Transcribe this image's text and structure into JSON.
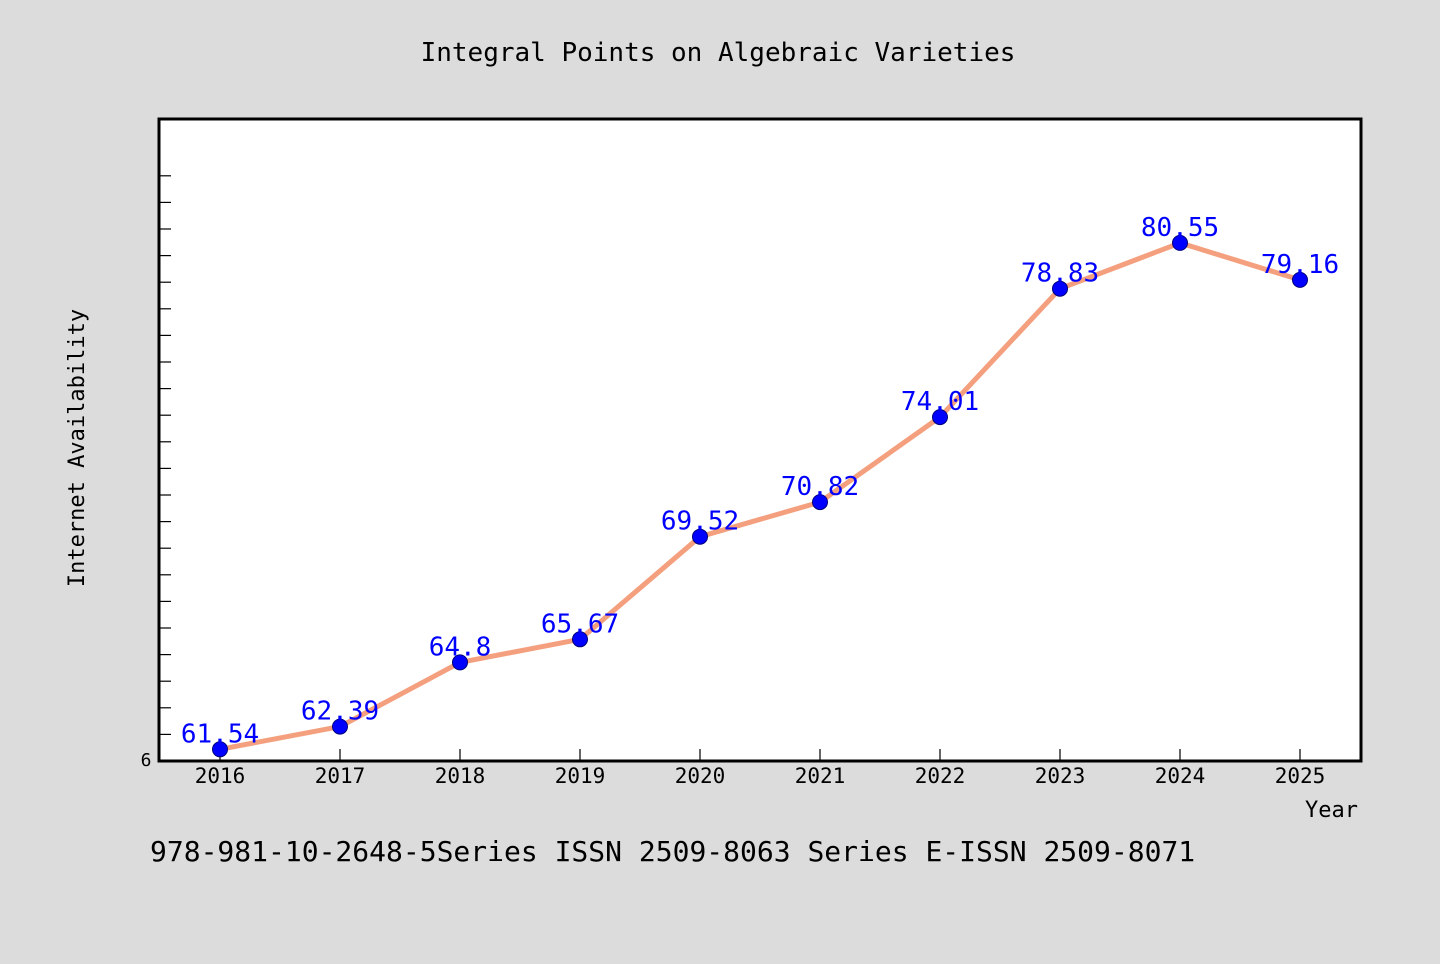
{
  "chart_data": {
    "type": "line",
    "title": "Integral Points on Algebraic Varieties",
    "xlabel": "Year",
    "ylabel": "Internet Availability",
    "footer": "978-981-10-2648-5Series ISSN 2509-8063 Series E-ISSN 2509-8071",
    "x": [
      "2016",
      "2017",
      "2018",
      "2019",
      "2020",
      "2021",
      "2022",
      "2023",
      "2024",
      "2025"
    ],
    "values": [
      61.54,
      62.39,
      64.8,
      65.67,
      69.52,
      70.82,
      74.01,
      78.83,
      80.55,
      79.16
    ],
    "data_labels": [
      "61.54",
      "62.39",
      "64.8",
      "65.67",
      "69.52",
      "70.82",
      "74.01",
      "78.83",
      "80.55",
      "79.16"
    ],
    "y_tick_label": "6",
    "ylim": [
      61.1,
      85.2
    ],
    "grid": false,
    "legend": "none",
    "colors": {
      "background": "#dcdcdc",
      "plot_area": "#ffffff",
      "line": "#f4a07f",
      "marker": "#0000ff",
      "data_label": "#0000ff",
      "text": "#000000"
    }
  }
}
